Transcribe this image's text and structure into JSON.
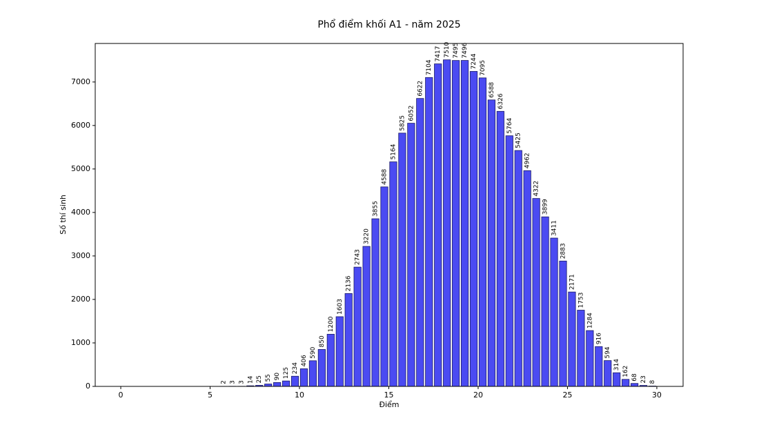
{
  "chart_data": {
    "type": "bar",
    "title": "Phổ điểm khối A1 - năm 2025",
    "xlabel": "Điểm",
    "ylabel": "Số thí sinh",
    "x": [
      5.75,
      6.25,
      6.75,
      7.25,
      7.75,
      8.25,
      8.75,
      9.25,
      9.75,
      10.25,
      10.75,
      11.25,
      11.75,
      12.25,
      12.75,
      13.25,
      13.75,
      14.25,
      14.75,
      15.25,
      15.75,
      16.25,
      16.75,
      17.25,
      17.75,
      18.25,
      18.75,
      19.25,
      19.75,
      20.25,
      20.75,
      21.25,
      21.75,
      22.25,
      22.75,
      23.25,
      23.75,
      24.25,
      24.75,
      25.25,
      25.75,
      26.25,
      26.75,
      27.25,
      27.75,
      28.25,
      28.75,
      29.25,
      29.75
    ],
    "values": [
      2,
      3,
      3,
      14,
      25,
      55,
      90,
      125,
      234,
      406,
      590,
      850,
      1200,
      1603,
      2136,
      2743,
      3220,
      3855,
      4588,
      5164,
      5825,
      6052,
      6622,
      7104,
      7417,
      7510,
      7495,
      7496,
      7244,
      7095,
      6588,
      6326,
      5764,
      5425,
      4962,
      4322,
      3899,
      3411,
      2883,
      2171,
      1753,
      1284,
      916,
      594,
      314,
      162,
      68,
      23,
      8
    ],
    "color": "#4b4bf2",
    "edgecolor": "#1a1a66",
    "xlim": [
      -1.43,
      31.47
    ],
    "xticks": [
      0,
      5,
      10,
      15,
      20,
      25,
      30
    ],
    "ylim": [
      0,
      7886
    ],
    "yticks": [
      0,
      1000,
      2000,
      3000,
      4000,
      5000,
      6000,
      7000
    ]
  }
}
